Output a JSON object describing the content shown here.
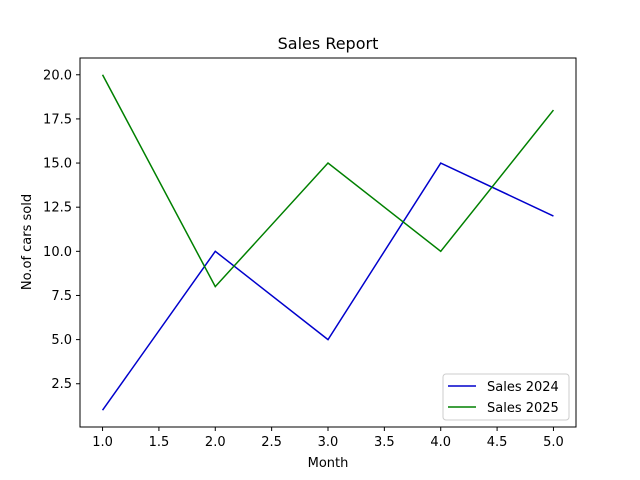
{
  "chart_data": {
    "type": "line",
    "title": "Sales Report",
    "xlabel": "Month",
    "ylabel": "No.of cars sold",
    "x": [
      1,
      2,
      3,
      4,
      5
    ],
    "xlim": [
      0.8,
      5.2
    ],
    "ylim": [
      0.05,
      20.95
    ],
    "xticks": [
      "1.0",
      "1.5",
      "2.0",
      "2.5",
      "3.0",
      "3.5",
      "4.0",
      "4.5",
      "5.0"
    ],
    "yticks": [
      "2.5",
      "5.0",
      "7.5",
      "10.0",
      "12.5",
      "15.0",
      "17.5",
      "20.0"
    ],
    "grid": false,
    "legend_position": "lower-right",
    "series": [
      {
        "name": "Sales 2024",
        "values": [
          1,
          10,
          5,
          15,
          12
        ],
        "color": "#0000cc"
      },
      {
        "name": "Sales 2025",
        "values": [
          20,
          8,
          15,
          10,
          18
        ],
        "color": "#008000"
      }
    ]
  }
}
